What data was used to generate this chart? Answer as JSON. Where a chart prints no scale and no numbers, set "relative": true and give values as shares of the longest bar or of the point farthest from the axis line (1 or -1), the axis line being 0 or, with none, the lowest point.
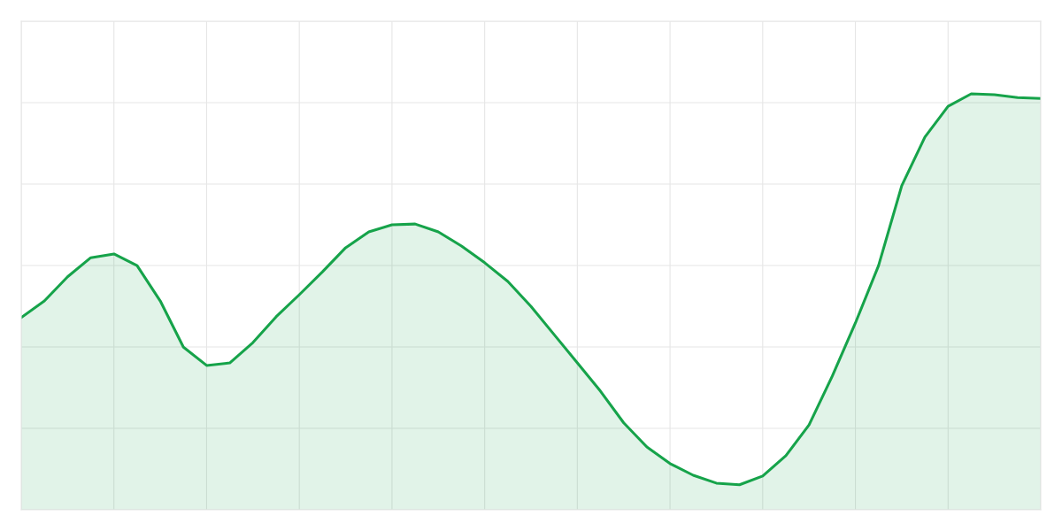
{
  "chart_data": {
    "type": "area",
    "relative": true,
    "categories": [
      null,
      null,
      null,
      null,
      null,
      null,
      null,
      null,
      null,
      null,
      null,
      null,
      null,
      null,
      null,
      null,
      null,
      null,
      null,
      null,
      null,
      null,
      null,
      null,
      null,
      null,
      null,
      null,
      null,
      null,
      null,
      null,
      null,
      null,
      null,
      null,
      null,
      null,
      null,
      null,
      null,
      null,
      null,
      null,
      null
    ],
    "series": [
      {
        "color": "#16a34a",
        "values": [
          0.462,
          0.502,
          0.56,
          0.606,
          0.615,
          0.587,
          0.502,
          0.391,
          0.347,
          0.353,
          0.402,
          0.464,
          0.517,
          0.572,
          0.63,
          0.668,
          0.685,
          0.687,
          0.668,
          0.634,
          0.594,
          0.549,
          0.489,
          0.421,
          0.353,
          0.285,
          0.209,
          0.151,
          0.111,
          0.083,
          0.064,
          0.06,
          0.081,
          0.13,
          0.204,
          0.321,
          0.449,
          0.587,
          0.779,
          0.896,
          0.97,
          1.0,
          0.998,
          0.991,
          0.989
        ]
      }
    ],
    "grid": true,
    "tick_labels": false
  }
}
